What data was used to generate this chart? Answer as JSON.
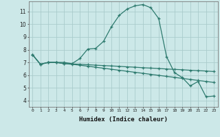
{
  "xlabel": "Humidex (Indice chaleur)",
  "bg_color": "#cce8e8",
  "grid_color": "#aacccc",
  "line_color": "#2d7a6e",
  "xlim": [
    -0.5,
    23.5
  ],
  "ylim": [
    3.5,
    11.8
  ],
  "xticks": [
    0,
    1,
    2,
    3,
    4,
    5,
    6,
    7,
    8,
    9,
    10,
    11,
    12,
    13,
    14,
    15,
    16,
    17,
    18,
    19,
    20,
    21,
    22,
    23
  ],
  "yticks": [
    4,
    5,
    6,
    7,
    8,
    9,
    10,
    11
  ],
  "series1_x": [
    0,
    1,
    2,
    3,
    4,
    5,
    6,
    7,
    8,
    9,
    10,
    11,
    12,
    13,
    14,
    15,
    16,
    17,
    18,
    19,
    20,
    21,
    22,
    23
  ],
  "series1_y": [
    7.6,
    6.85,
    7.0,
    7.0,
    7.0,
    6.9,
    7.3,
    8.05,
    8.1,
    8.65,
    9.8,
    10.7,
    11.2,
    11.45,
    11.55,
    11.3,
    10.45,
    7.45,
    6.2,
    5.8,
    5.15,
    5.5,
    4.3,
    4.35
  ],
  "series2_x": [
    0,
    1,
    2,
    3,
    4,
    5,
    6,
    7,
    8,
    9,
    10,
    11,
    12,
    13,
    14,
    15,
    16,
    17,
    18,
    19,
    20,
    21,
    22,
    23
  ],
  "series2_y": [
    7.6,
    6.85,
    7.0,
    7.0,
    6.9,
    6.88,
    6.85,
    6.82,
    6.78,
    6.75,
    6.72,
    6.69,
    6.65,
    6.62,
    6.58,
    6.55,
    6.52,
    6.48,
    6.45,
    6.42,
    6.38,
    6.35,
    6.32,
    6.28
  ],
  "series3_x": [
    0,
    1,
    2,
    3,
    4,
    5,
    6,
    7,
    8,
    9,
    10,
    11,
    12,
    13,
    14,
    15,
    16,
    17,
    18,
    19,
    20,
    21,
    22,
    23
  ],
  "series3_y": [
    7.6,
    6.85,
    7.0,
    7.0,
    6.9,
    6.85,
    6.78,
    6.7,
    6.62,
    6.54,
    6.46,
    6.38,
    6.3,
    6.22,
    6.14,
    6.06,
    5.98,
    5.9,
    5.82,
    5.74,
    5.66,
    5.58,
    5.5,
    5.42
  ]
}
